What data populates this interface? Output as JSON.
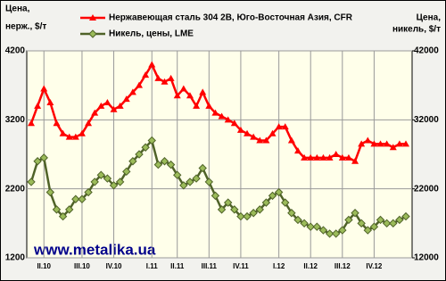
{
  "chart_data": {
    "type": "line",
    "legend_position": "top",
    "ylabel": [
      "Цена,",
      "нерж., $/т"
    ],
    "y2label": [
      "Цена,",
      "никель, $/т"
    ],
    "annotation": "www.metalika.ua",
    "categories": [
      null,
      null,
      "II.10",
      null,
      null,
      null,
      null,
      null,
      "III.10",
      null,
      null,
      null,
      null,
      "IV.10",
      null,
      null,
      null,
      null,
      null,
      "I.11",
      null,
      null,
      null,
      "II.11",
      null,
      null,
      null,
      null,
      "III.11",
      null,
      null,
      null,
      null,
      "IV.11",
      null,
      null,
      null,
      null,
      null,
      "I.12",
      null,
      null,
      null,
      null,
      "II.12",
      null,
      null,
      null,
      null,
      "III.12",
      null,
      null,
      null,
      null,
      "IV.12",
      null,
      null,
      null,
      null,
      null
    ],
    "ylim": [
      1200,
      4200
    ],
    "yticks": [
      1200,
      2200,
      3200,
      4200
    ],
    "y2lim": [
      12000,
      42000
    ],
    "y2ticks": [
      12000,
      22000,
      32000,
      42000
    ],
    "grid": true,
    "series": [
      {
        "name": "Нержавеющая сталь 304 2В, Юго-Восточная Азия, CFR",
        "color": "#ff0000",
        "marker": "triangle",
        "values": [
          3150,
          3400,
          3650,
          3450,
          3150,
          3000,
          2950,
          2950,
          3000,
          3150,
          3300,
          3400,
          3450,
          3350,
          3400,
          3500,
          3600,
          3700,
          3850,
          4000,
          3800,
          3750,
          3800,
          3550,
          3650,
          3550,
          3400,
          3600,
          3400,
          3300,
          3250,
          3200,
          3150,
          3050,
          3000,
          2950,
          2900,
          2900,
          3000,
          3100,
          3100,
          2900,
          2750,
          2650,
          2650,
          2650,
          2650,
          2650,
          2700,
          2650,
          2650,
          2600,
          2850,
          2900,
          2850,
          2850,
          2850,
          2800,
          2850,
          2850
        ]
      },
      {
        "name": "Никель, цены, LME",
        "color": "#4f6228",
        "marker": "diamond",
        "axis": "y2",
        "values": [
          23000,
          26000,
          26500,
          21500,
          19000,
          18000,
          19000,
          20500,
          20500,
          21500,
          23000,
          24000,
          23500,
          22500,
          23000,
          24500,
          26000,
          27000,
          28000,
          29000,
          25500,
          26000,
          25500,
          24000,
          22500,
          23000,
          23500,
          25000,
          23000,
          21000,
          19000,
          20000,
          19000,
          18000,
          18000,
          18500,
          19000,
          20000,
          21000,
          21500,
          20000,
          18500,
          17500,
          17000,
          16500,
          16500,
          16000,
          15500,
          15500,
          16000,
          17500,
          18500,
          17000,
          16000,
          16500,
          17500,
          17000,
          17000,
          17500,
          18000
        ]
      }
    ]
  }
}
